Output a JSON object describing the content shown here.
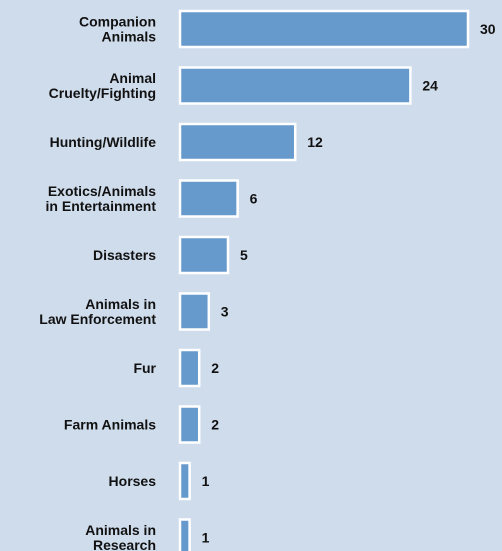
{
  "chart_data": {
    "type": "bar",
    "orientation": "horizontal",
    "categories": [
      [
        "Companion",
        "Animals"
      ],
      [
        "Animal",
        "Cruelty/Fighting"
      ],
      [
        "Hunting/Wildlife"
      ],
      [
        "Exotics/Animals",
        "in Entertainment"
      ],
      [
        "Disasters"
      ],
      [
        "Animals in",
        "Law Enforcement"
      ],
      [
        "Fur"
      ],
      [
        "Farm Animals"
      ],
      [
        "Horses"
      ],
      [
        "Animals in",
        "Research"
      ]
    ],
    "values": [
      30,
      24,
      12,
      6,
      5,
      3,
      2,
      2,
      1,
      1
    ],
    "data_labels": [
      "30",
      "24",
      "12",
      "6",
      "5",
      "3",
      "2",
      "2",
      "1",
      "1"
    ],
    "title": "",
    "xlabel": "",
    "ylabel": "",
    "xlim": [
      0,
      30
    ],
    "grid": false,
    "legend": "none",
    "colors": {
      "bar_fill": "#6699cc",
      "bar_stroke": "#ffffff",
      "background": "#cfdcec",
      "text": "#111111"
    }
  }
}
